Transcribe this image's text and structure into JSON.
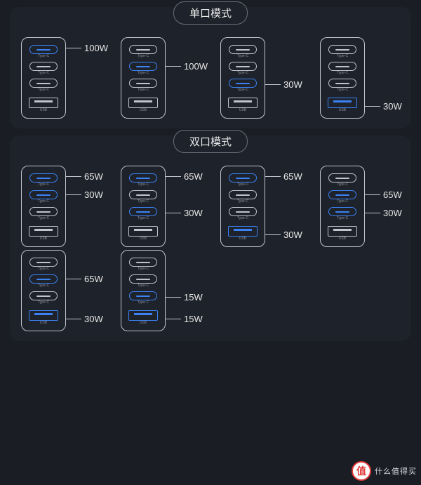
{
  "colors": {
    "page_bg": "#1a1d24",
    "panel_bg": "#1e222a",
    "outline": "#c0c4cc",
    "text": "#e8e8e8",
    "sublabel": "#8a8f99",
    "accent": "#3b82f6"
  },
  "port_labels": {
    "typec": "Type-C",
    "usb": "USB"
  },
  "port_offsets": [
    15,
    41,
    67,
    98
  ],
  "sections": [
    {
      "title": "单口模式",
      "rows": [
        [
          {
            "active": [
              0
            ],
            "callouts": [
              {
                "port": 0,
                "w": "100W"
              }
            ]
          },
          {
            "active": [
              1
            ],
            "callouts": [
              {
                "port": 1,
                "w": "100W"
              }
            ]
          },
          {
            "active": [
              2
            ],
            "callouts": [
              {
                "port": 2,
                "w": "30W"
              }
            ]
          },
          {
            "active": [
              3
            ],
            "callouts": [
              {
                "port": 3,
                "w": "30W"
              }
            ]
          }
        ]
      ]
    },
    {
      "title": "双口模式",
      "rows": [
        [
          {
            "active": [
              0,
              1
            ],
            "callouts": [
              {
                "port": 0,
                "w": "65W"
              },
              {
                "port": 1,
                "w": "30W"
              }
            ]
          },
          {
            "active": [
              0,
              2
            ],
            "callouts": [
              {
                "port": 0,
                "w": "65W"
              },
              {
                "port": 2,
                "w": "30W"
              }
            ]
          },
          {
            "active": [
              0,
              3
            ],
            "callouts": [
              {
                "port": 0,
                "w": "65W"
              },
              {
                "port": 3,
                "w": "30W"
              }
            ]
          },
          {
            "active": [
              1,
              2
            ],
            "callouts": [
              {
                "port": 1,
                "w": "65W"
              },
              {
                "port": 2,
                "w": "30W"
              }
            ]
          }
        ],
        [
          {
            "active": [
              1,
              3
            ],
            "callouts": [
              {
                "port": 1,
                "w": "65W"
              },
              {
                "port": 3,
                "w": "30W"
              }
            ]
          },
          {
            "active": [
              2,
              3
            ],
            "callouts": [
              {
                "port": 2,
                "w": "15W"
              },
              {
                "port": 3,
                "w": "15W"
              }
            ]
          }
        ]
      ]
    }
  ],
  "watermark": {
    "badge": "值",
    "text": "什么值得买"
  }
}
